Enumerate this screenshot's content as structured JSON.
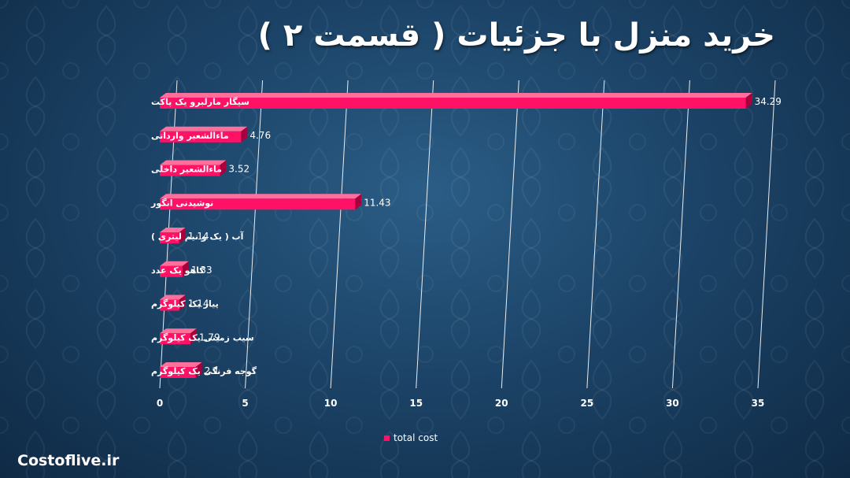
{
  "page": {
    "title": "خرید منزل با جزئیات ( قسمت ۲ )",
    "brand": "Costoflive.ir"
  },
  "colors": {
    "bar": "#ff1166",
    "bar_side": "#a8003c",
    "bar_top": "#ff6f9c",
    "grid": "#ffffff",
    "text": "#ffffff"
  },
  "chart_data": {
    "type": "bar",
    "orientation": "horizontal",
    "categories": [
      "سیگار مارلبرو یک پاکت",
      "ماءالشعیر وارداتی",
      "ماءالشعیر داخلی",
      "نوشیدنی انگور",
      "آب ( یک و نیم لیتری )",
      "کاهو  یک عدد",
      "پیاز یک کیلوگرم",
      "سیب زمینی یک کیلوگرم",
      "گوجه فرنگی یک کیلوگرم"
    ],
    "series": [
      {
        "name": "total cost",
        "values": [
          34.29,
          4.76,
          3.52,
          11.43,
          1.14,
          1.33,
          1.14,
          1.79,
          2.1
        ],
        "labels": [
          "34.29",
          "4.76",
          "3.52",
          "11.43",
          "1.14",
          "1.33",
          "1.14",
          "1.79",
          "2.1"
        ]
      }
    ],
    "xlim": [
      0,
      35
    ],
    "xticks": [
      "0",
      "5",
      "10",
      "15",
      "20",
      "25",
      "30",
      "35"
    ],
    "grid": true,
    "legend": "bottom"
  }
}
